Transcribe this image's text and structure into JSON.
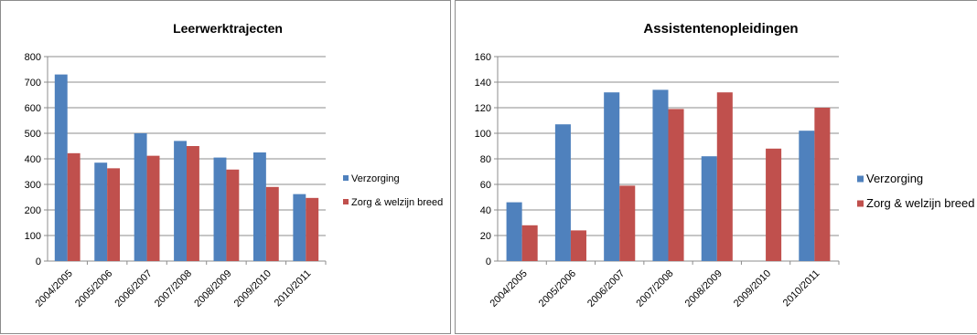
{
  "chart_data": [
    {
      "type": "bar",
      "title": "Leerwerktrajecten",
      "categories": [
        "2004/2005",
        "2005/2006",
        "2006/2007",
        "2007/2008",
        "2008/2009",
        "2009/2010",
        "2010/2011"
      ],
      "series": [
        {
          "name": "Verzorging",
          "color": "#4f81bd",
          "values": [
            730,
            385,
            500,
            470,
            405,
            425,
            262
          ]
        },
        {
          "name": "Zorg & welzijn breed",
          "color": "#c0504d",
          "values": [
            422,
            363,
            412,
            450,
            358,
            290,
            247
          ]
        }
      ],
      "ylim": [
        0,
        800
      ],
      "yticks": [
        0,
        100,
        200,
        300,
        400,
        500,
        600,
        700,
        800
      ],
      "grid": true,
      "legend": "right"
    },
    {
      "type": "bar",
      "title": "Assistentenopleidingen",
      "categories": [
        "2004/2005",
        "2005/2006",
        "2006/2007",
        "2007/2008",
        "2008/2009",
        "2009/2010",
        "2010/2011"
      ],
      "series": [
        {
          "name": "Verzorging",
          "color": "#4f81bd",
          "values": [
            46,
            107,
            132,
            134,
            82,
            null,
            102
          ]
        },
        {
          "name": "Zorg & welzijn breed",
          "color": "#c0504d",
          "values": [
            28,
            24,
            59,
            119,
            132,
            88,
            120
          ]
        }
      ],
      "ylim": [
        0,
        160
      ],
      "yticks": [
        0,
        20,
        40,
        60,
        80,
        100,
        120,
        140,
        160
      ],
      "grid": true,
      "legend": "right"
    }
  ]
}
